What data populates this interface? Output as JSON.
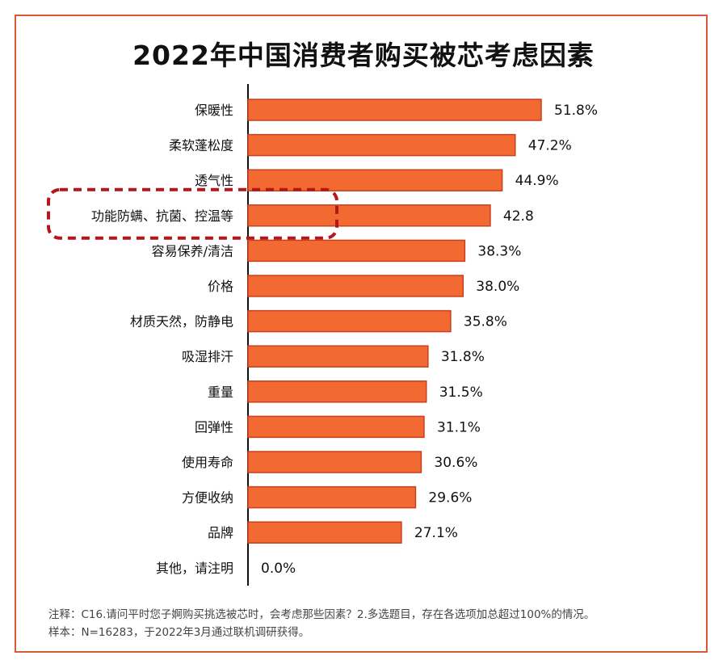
{
  "title": "2022年中国消费者购买被芯考虑因素",
  "chart_data": {
    "type": "bar",
    "orientation": "horizontal",
    "title": "2022年中国消费者购买被芯考虑因素",
    "categories": [
      "保暖性",
      "柔软蓬松度",
      "透气性",
      "功能防螨、抗菌、控温等",
      "容易保养/清洁",
      "价格",
      "材质天然，防静电",
      "吸湿排汗",
      "重量",
      "回弹性",
      "使用寿命",
      "方便收纳",
      "品牌",
      "其他，请注明"
    ],
    "values": [
      51.8,
      47.2,
      44.9,
      42.8,
      38.3,
      38.0,
      35.8,
      31.8,
      31.5,
      31.1,
      30.6,
      29.6,
      27.1,
      0.0
    ],
    "value_labels": [
      "51.8%",
      "47.2%",
      "44.9%",
      "42.8",
      "38.3%",
      "38.0%",
      "35.8%",
      "31.8%",
      "31.5%",
      "31.1%",
      "30.6%",
      "29.6%",
      "27.1%",
      "0.0%"
    ],
    "highlighted_category": "功能防螨、抗菌、控温等",
    "xlim": [
      0,
      100
    ],
    "xlabel": "",
    "ylabel": "",
    "grid": false,
    "bar_color": "#f26a32",
    "bar_border_color": "#c8401e",
    "highlight_color": "#b5161b"
  },
  "notes": {
    "line1": "注释：C16.请问平时您子婀购买挑选被芯时，会考虑那些因素？2.多选题目，存在各选项加总超过100%的情况。",
    "line2": "样本：N=16283，于2022年3月通过联机调研获得。"
  },
  "colors": {
    "frame": "#d8583a"
  }
}
